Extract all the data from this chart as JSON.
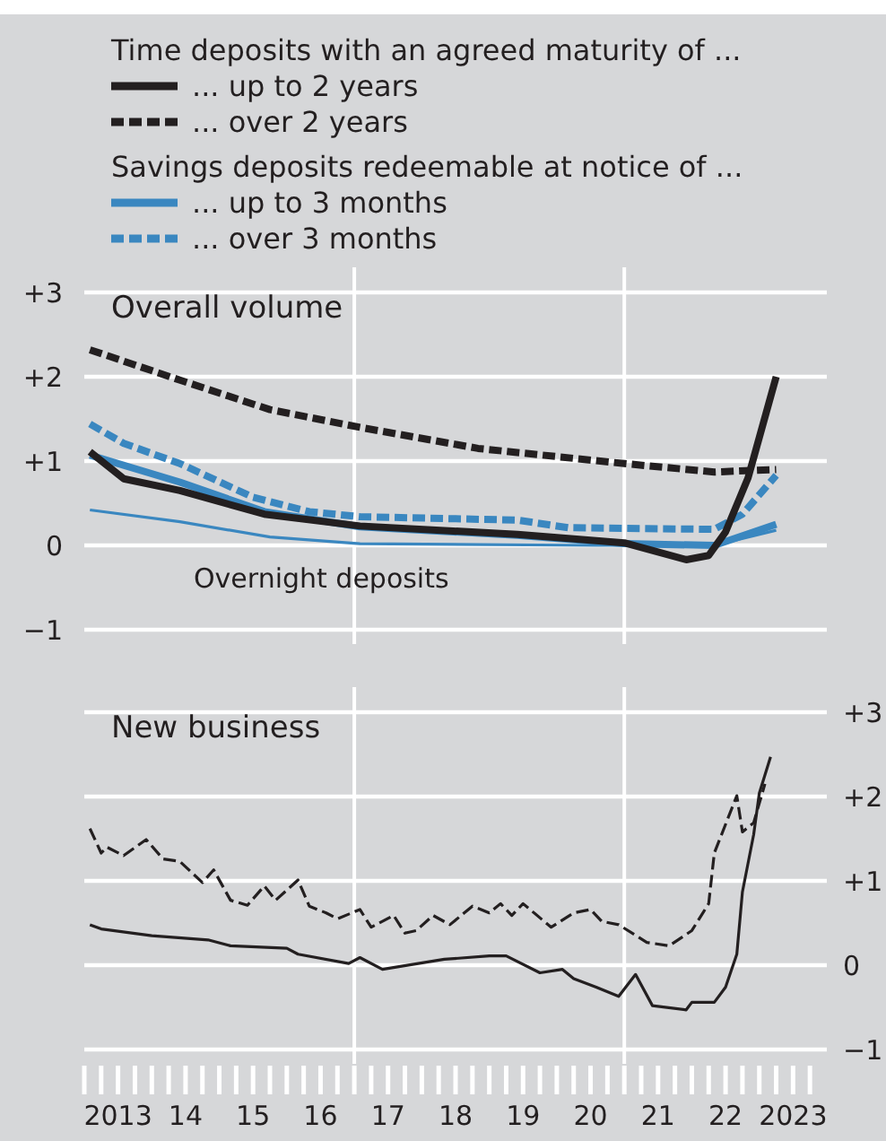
{
  "chart_data": [
    {
      "type": "line",
      "title": "Overall volume",
      "legend": "top",
      "grid": "y",
      "tick_labels": "y",
      "annotations": [
        "Time deposits with an agreed maturity of ...",
        "Savings deposits redeemable at notice of ...",
        "Overnight deposits"
      ],
      "xlim": [
        "2013-01",
        "2024-01"
      ],
      "ylim": [
        -1,
        3
      ],
      "yticks": [
        {
          "value": -1,
          "label": "−1"
        },
        0,
        {
          "value": 1,
          "label": "+1"
        },
        {
          "value": 2,
          "label": "+2"
        },
        {
          "value": 3,
          "label": "+3"
        }
      ],
      "ref_lines": [
        {
          "axis": "x",
          "value": "2017-01",
          "color": "#ffffff"
        },
        {
          "axis": "x",
          "value": "2021-01",
          "color": "#ffffff"
        }
      ],
      "series": [
        {
          "name": "... up to 2 years",
          "color": "#231f20",
          "line_style": "solid",
          "x": [
            "2013-02",
            "2013-08",
            "2014-06",
            "2015-09",
            "2017-02",
            "2019-06",
            "2021-01",
            "2021-12",
            "2022-04",
            "2022-07",
            "2022-11",
            "2023-04"
          ],
          "values": [
            1.11,
            0.79,
            0.65,
            0.37,
            0.23,
            0.13,
            0.03,
            -0.17,
            -0.12,
            0.16,
            0.8,
            2.0
          ]
        },
        {
          "name": "... over 2 years",
          "color": "#231f20",
          "line_style": "dashed",
          "x": [
            "2013-02",
            "2014-06",
            "2015-10",
            "2017-02",
            "2018-11",
            "2021-01",
            "2022-05",
            "2023-04"
          ],
          "values": [
            2.32,
            1.96,
            1.61,
            1.4,
            1.15,
            0.97,
            0.87,
            0.9
          ]
        },
        {
          "name": "... up to 3 months",
          "color": "#3a87c0",
          "line_style": "solid",
          "x": [
            "2013-02",
            "2014-06",
            "2015-09",
            "2017-02",
            "2019-06",
            "2021-01",
            "2022-05",
            "2023-04"
          ],
          "values": [
            1.07,
            0.75,
            0.4,
            0.22,
            0.12,
            0.02,
            0.0,
            0.25
          ]
        },
        {
          "name": "... over 3 months",
          "color": "#3a87c0",
          "line_style": "dashed",
          "x": [
            "2013-02",
            "2013-08",
            "2014-06",
            "2015-07",
            "2016-05",
            "2017-02",
            "2019-06",
            "2020-03",
            "2022-05",
            "2022-10",
            "2023-04"
          ],
          "values": [
            1.44,
            1.21,
            0.97,
            0.57,
            0.4,
            0.34,
            0.3,
            0.21,
            0.19,
            0.37,
            0.83
          ]
        },
        {
          "color": "#3a87c0",
          "line_style": "solid",
          "x": [
            "2013-02",
            "2014-06",
            "2015-10",
            "2017-02",
            "2020-08",
            "2022-05",
            "2023-04"
          ],
          "values": [
            0.42,
            0.28,
            0.1,
            0.02,
            0.0,
            0.0,
            0.18
          ]
        }
      ]
    },
    {
      "type": "line",
      "title": "New business",
      "legend": false,
      "grid": "y",
      "xlim": [
        "2013-01",
        "2024-01"
      ],
      "y2lim": [
        -1,
        3
      ],
      "y2ticks": [
        {
          "value": -1,
          "label": "−1"
        },
        0,
        {
          "value": 1,
          "label": "+1"
        },
        {
          "value": 2,
          "label": "+2"
        },
        {
          "value": 3,
          "label": "+3"
        }
      ],
      "xticks": [
        {
          "value": "2013-01",
          "label": null
        },
        {
          "value": "2013-04",
          "label": null
        },
        {
          "value": "2013-07",
          "label": "2013"
        },
        {
          "value": "2013-10",
          "label": null
        },
        {
          "value": "2014-01",
          "label": null
        },
        {
          "value": "2014-04",
          "label": null
        },
        {
          "value": "2014-07",
          "label": "14"
        },
        {
          "value": "2014-10",
          "label": null
        },
        {
          "value": "2015-01",
          "label": null
        },
        {
          "value": "2015-04",
          "label": null
        },
        {
          "value": "2015-07",
          "label": "15"
        },
        {
          "value": "2015-10",
          "label": null
        },
        {
          "value": "2016-01",
          "label": null
        },
        {
          "value": "2016-04",
          "label": null
        },
        {
          "value": "2016-07",
          "label": "16"
        },
        {
          "value": "2016-10",
          "label": null
        },
        {
          "value": "2017-01",
          "label": null
        },
        {
          "value": "2017-04",
          "label": null
        },
        {
          "value": "2017-07",
          "label": "17"
        },
        {
          "value": "2017-10",
          "label": null
        },
        {
          "value": "2018-01",
          "label": null
        },
        {
          "value": "2018-04",
          "label": null
        },
        {
          "value": "2018-07",
          "label": "18"
        },
        {
          "value": "2018-10",
          "label": null
        },
        {
          "value": "2019-01",
          "label": null
        },
        {
          "value": "2019-04",
          "label": null
        },
        {
          "value": "2019-07",
          "label": "19"
        },
        {
          "value": "2019-10",
          "label": null
        },
        {
          "value": "2020-01",
          "label": null
        },
        {
          "value": "2020-04",
          "label": null
        },
        {
          "value": "2020-07",
          "label": "20"
        },
        {
          "value": "2020-10",
          "label": null
        },
        {
          "value": "2021-01",
          "label": null
        },
        {
          "value": "2021-04",
          "label": null
        },
        {
          "value": "2021-07",
          "label": "21"
        },
        {
          "value": "2021-10",
          "label": null
        },
        {
          "value": "2022-01",
          "label": null
        },
        {
          "value": "2022-04",
          "label": null
        },
        {
          "value": "2022-07",
          "label": "22"
        },
        {
          "value": "2022-10",
          "label": null
        },
        {
          "value": "2023-01",
          "label": null
        },
        {
          "value": "2023-04",
          "label": null
        },
        {
          "value": "2023-07",
          "label": "2023"
        },
        {
          "value": "2023-10",
          "label": null
        }
      ],
      "ref_lines": [
        {
          "axis": "x",
          "value": "2017-01",
          "color": "#ffffff"
        },
        {
          "axis": "x",
          "value": "2021-01",
          "color": "#ffffff"
        }
      ],
      "series": [
        {
          "color": "#231f20",
          "line_style": "solid",
          "axis": "y2",
          "x": [
            "2013-02",
            "2013-04",
            "2014-01",
            "2014-11",
            "2015-03",
            "2016-01",
            "2016-03",
            "2016-12",
            "2017-02",
            "2017-06",
            "2018-05",
            "2019-01",
            "2019-04",
            "2019-10",
            "2020-02",
            "2020-04",
            "2020-08",
            "2020-12",
            "2021-03",
            "2021-06",
            "2021-12",
            "2022-01",
            "2022-05",
            "2022-07",
            "2022-09",
            "2022-10",
            "2022-12",
            "2023-01",
            "2023-03"
          ],
          "values": [
            0.48,
            0.43,
            0.35,
            0.3,
            0.23,
            0.2,
            0.13,
            0.02,
            0.09,
            -0.05,
            0.07,
            0.11,
            0.11,
            -0.09,
            -0.05,
            -0.16,
            -0.26,
            -0.37,
            -0.11,
            -0.48,
            -0.53,
            -0.44,
            -0.44,
            -0.26,
            0.13,
            0.87,
            1.55,
            2.04,
            2.47
          ]
        },
        {
          "color": "#231f20",
          "line_style": "dashed",
          "axis": "y2",
          "x": [
            "2013-02",
            "2013-04",
            "2013-05",
            "2013-08",
            "2013-12",
            "2014-03",
            "2014-06",
            "2014-10",
            "2014-12",
            "2015-03",
            "2015-06",
            "2015-09",
            "2015-11",
            "2016-03",
            "2016-05",
            "2016-08",
            "2016-10",
            "2017-02",
            "2017-04",
            "2017-08",
            "2017-10",
            "2017-12",
            "2018-03",
            "2018-06",
            "2018-10",
            "2019-01",
            "2019-03",
            "2019-05",
            "2019-07",
            "2019-12",
            "2020-04",
            "2020-07",
            "2020-09",
            "2020-12",
            "2021-05",
            "2021-09",
            "2022-01",
            "2022-04",
            "2022-05",
            "2022-09",
            "2022-10",
            "2022-12",
            "2023-02"
          ],
          "values": [
            1.62,
            1.33,
            1.4,
            1.3,
            1.49,
            1.26,
            1.23,
            0.98,
            1.13,
            0.77,
            0.71,
            0.94,
            0.77,
            1.01,
            0.7,
            0.62,
            0.55,
            0.66,
            0.45,
            0.59,
            0.38,
            0.41,
            0.59,
            0.48,
            0.7,
            0.62,
            0.73,
            0.59,
            0.73,
            0.45,
            0.62,
            0.66,
            0.52,
            0.48,
            0.27,
            0.23,
            0.41,
            0.73,
            1.33,
            2.01,
            1.58,
            1.69,
            2.15
          ]
        }
      ]
    }
  ]
}
